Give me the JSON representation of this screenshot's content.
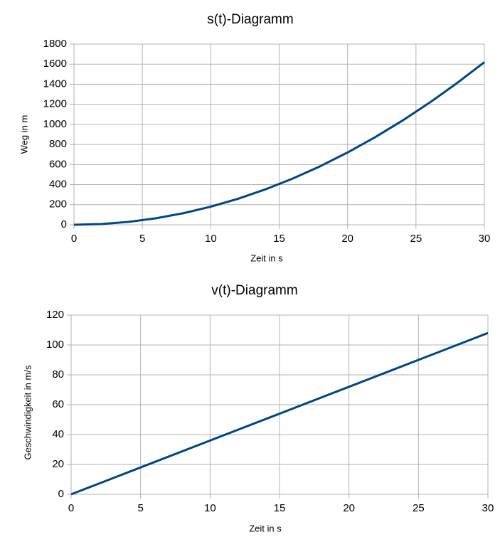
{
  "chart_data": [
    {
      "type": "line",
      "title": "s(t)-Diagramm",
      "x_label": "Zeit in s",
      "y_label": "Weg in m",
      "x": [
        0,
        2,
        4,
        6,
        8,
        10,
        12,
        14,
        16,
        18,
        20,
        22,
        24,
        26,
        28,
        30
      ],
      "series": [
        {
          "color": "#004586",
          "values": [
            0,
            7.2,
            28.8,
            64.8,
            115.2,
            180,
            259.2,
            352.8,
            460.8,
            583.2,
            720,
            871.2,
            1036.8,
            1216.8,
            1411.2,
            1620
          ]
        }
      ],
      "xlim": [
        0,
        30
      ],
      "xticks": [
        0,
        5,
        10,
        15,
        20,
        25,
        30
      ],
      "ylim": [
        0,
        1800
      ],
      "yticks": [
        0,
        200,
        400,
        600,
        800,
        1000,
        1200,
        1400,
        1600,
        1800
      ],
      "grid": true
    },
    {
      "type": "line",
      "title": "v(t)-Diagramm",
      "x_label": "Zeit in s",
      "y_label": "Geschwindigkeit in m/s",
      "x": [
        0,
        5,
        10,
        15,
        20,
        25,
        30
      ],
      "series": [
        {
          "color": "#004586",
          "values": [
            0,
            18,
            36,
            54,
            72,
            90,
            108
          ]
        }
      ],
      "xlim": [
        0,
        30
      ],
      "xticks": [
        0,
        5,
        10,
        15,
        20,
        25,
        30
      ],
      "ylim": [
        0,
        120
      ],
      "yticks": [
        0,
        20,
        40,
        60,
        80,
        100,
        120
      ],
      "grid": true
    }
  ]
}
